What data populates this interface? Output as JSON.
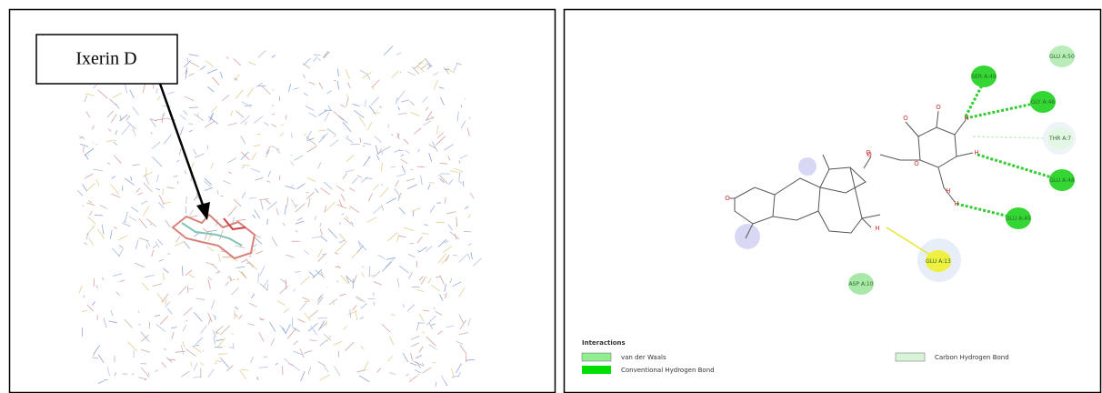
{
  "left_panel": {
    "label": "Ixerin D"
  },
  "right_panel": {
    "residues": [
      {
        "label": "SER A:49"
      },
      {
        "label": "GLU A:50"
      },
      {
        "label": "GLY A:46"
      },
      {
        "label": "THR A:7"
      },
      {
        "label": "GLU A:48"
      },
      {
        "label": "GLU A:45"
      },
      {
        "label": "GLU A:13"
      },
      {
        "label": "ASP A:10"
      }
    ],
    "atoms": [
      "O",
      "O",
      "H",
      "O",
      "H",
      "H",
      "H",
      "O",
      "H",
      "O",
      "O"
    ],
    "legend": {
      "title": "Interactions",
      "items": [
        "van der Waals",
        "Conventional Hydrogen Bond",
        "Carbon Hydrogen Bond"
      ]
    }
  }
}
